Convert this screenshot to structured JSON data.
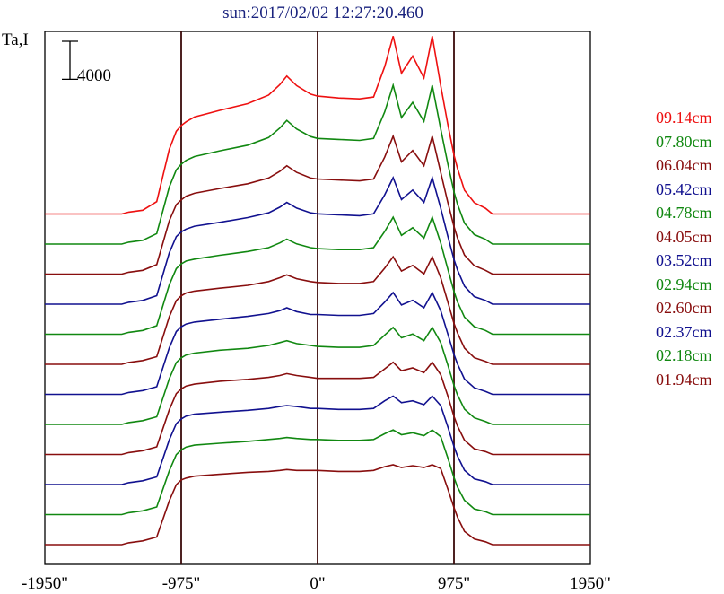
{
  "header": {
    "title": "sun:2017/02/02 12:27:20.460",
    "ylabel": "Ta,I"
  },
  "scale_bar": {
    "label": "4000"
  },
  "legend": {
    "items": [
      {
        "label": "09.14cm",
        "color": "#ee1111"
      },
      {
        "label": "07.80cm",
        "color": "#118811"
      },
      {
        "label": "06.04cm",
        "color": "#880e0e"
      },
      {
        "label": "05.42cm",
        "color": "#11118f"
      },
      {
        "label": "04.78cm",
        "color": "#118811"
      },
      {
        "label": "04.05cm",
        "color": "#880e0e"
      },
      {
        "label": "03.52cm",
        "color": "#11118f"
      },
      {
        "label": "02.94cm",
        "color": "#118811"
      },
      {
        "label": "02.60cm",
        "color": "#880e0e"
      },
      {
        "label": "02.37cm",
        "color": "#11118f"
      },
      {
        "label": "02.18cm",
        "color": "#118811"
      },
      {
        "label": "01.94cm",
        "color": "#880e0e"
      }
    ]
  },
  "chart_data": {
    "type": "line",
    "title": "sun:2017/02/02 12:27:20.460",
    "ylabel": "Ta,I",
    "xlabel": "",
    "xlim": [
      -1950,
      1950
    ],
    "x_ticks": [
      -1950,
      -975,
      0,
      975,
      1950
    ],
    "x_tick_labels": [
      "-1950\"",
      "-975\"",
      "0\"",
      "975\"",
      "1950\""
    ],
    "vertical_reference_lines": [
      -975,
      0,
      975
    ],
    "scale_bar_value": 4000,
    "profile_x": [
      -1950,
      -1400,
      -1350,
      -1250,
      -1150,
      -1060,
      -1010,
      -975,
      -940,
      -880,
      -700,
      -500,
      -350,
      -270,
      -220,
      -150,
      -50,
      0,
      150,
      300,
      400,
      480,
      540,
      600,
      680,
      760,
      820,
      880,
      930,
      975,
      1000,
      1050,
      1120,
      1200,
      1250,
      1400,
      1950
    ],
    "series": [
      {
        "name": "09.14cm",
        "color": "#ee1111",
        "ybase": 0,
        "hump_scale": 1.0,
        "y": [
          0,
          0,
          200,
          400,
          1300,
          6800,
          8700,
          9300,
          9700,
          10200,
          10900,
          11600,
          12500,
          13600,
          14500,
          13500,
          12600,
          12400,
          12200,
          12100,
          12300,
          15500,
          18700,
          14800,
          16600,
          14300,
          18700,
          13500,
          9500,
          6200,
          4800,
          2500,
          1200,
          600,
          0,
          0,
          0
        ]
      },
      {
        "name": "07.80cm",
        "color": "#118811",
        "ybase": 0,
        "hump_scale": 0.85,
        "y": [
          0,
          0,
          200,
          400,
          1100,
          6000,
          7800,
          8400,
          8800,
          9200,
          9800,
          10400,
          11200,
          12200,
          13000,
          12100,
          11300,
          11100,
          11000,
          10900,
          11100,
          13900,
          16700,
          13300,
          14900,
          12900,
          16700,
          12100,
          8500,
          5500,
          4200,
          2200,
          1000,
          500,
          0,
          0,
          0
        ]
      },
      {
        "name": "06.04cm",
        "color": "#880e0e",
        "ybase": 0,
        "hump_scale": 0.7,
        "y": [
          0,
          0,
          200,
          400,
          1000,
          5600,
          7300,
          7800,
          8200,
          8500,
          9000,
          9500,
          10100,
          10800,
          11400,
          10700,
          10100,
          10000,
          9900,
          9800,
          10000,
          12300,
          14500,
          11800,
          13000,
          11400,
          14500,
          10700,
          7600,
          5000,
          3800,
          2000,
          900,
          400,
          0,
          0,
          0
        ]
      },
      {
        "name": "05.42cm",
        "color": "#11118f",
        "ybase": 0,
        "hump_scale": 0.6,
        "y": [
          0,
          0,
          200,
          400,
          900,
          5400,
          7100,
          7600,
          7900,
          8200,
          8600,
          9100,
          9600,
          10200,
          10700,
          10100,
          9600,
          9500,
          9400,
          9300,
          9500,
          11500,
          13300,
          11000,
          12000,
          10700,
          13300,
          10100,
          7200,
          4700,
          3600,
          1900,
          800,
          400,
          0,
          0,
          0
        ]
      },
      {
        "name": "04.78cm",
        "color": "#118811",
        "ybase": 0,
        "hump_scale": 0.5,
        "y": [
          0,
          0,
          200,
          400,
          900,
          5200,
          6900,
          7400,
          7700,
          7900,
          8300,
          8700,
          9100,
          9600,
          10000,
          9500,
          9100,
          9000,
          8900,
          8900,
          9100,
          10800,
          12300,
          10400,
          11200,
          10100,
          12300,
          9600,
          6900,
          4500,
          3400,
          1800,
          800,
          400,
          0,
          0,
          0
        ]
      },
      {
        "name": "04.05cm",
        "color": "#880e0e",
        "ybase": 0,
        "hump_scale": 0.4,
        "y": [
          0,
          0,
          200,
          400,
          800,
          5000,
          6700,
          7200,
          7500,
          7700,
          8000,
          8300,
          8700,
          9100,
          9400,
          9000,
          8700,
          8600,
          8500,
          8500,
          8700,
          10100,
          11300,
          9800,
          10400,
          9500,
          11300,
          9100,
          6600,
          4300,
          3300,
          1700,
          700,
          300,
          0,
          0,
          0
        ]
      },
      {
        "name": "03.52cm",
        "color": "#11118f",
        "ybase": 0,
        "hump_scale": 0.35,
        "y": [
          0,
          0,
          200,
          400,
          800,
          4900,
          6600,
          7100,
          7400,
          7600,
          7900,
          8200,
          8500,
          8800,
          9100,
          8700,
          8400,
          8400,
          8300,
          8300,
          8500,
          9700,
          10700,
          9400,
          9900,
          9100,
          10700,
          8800,
          6400,
          4200,
          3200,
          1600,
          700,
          300,
          0,
          0,
          0
        ]
      },
      {
        "name": "02.94cm",
        "color": "#118811",
        "ybase": 0,
        "hump_scale": 0.3,
        "y": [
          0,
          0,
          200,
          400,
          800,
          4800,
          6500,
          7000,
          7300,
          7500,
          7800,
          8000,
          8300,
          8600,
          8800,
          8500,
          8300,
          8200,
          8100,
          8100,
          8300,
          9400,
          10200,
          9100,
          9500,
          8800,
          10200,
          8600,
          6300,
          4100,
          3100,
          1600,
          700,
          300,
          0,
          0,
          0
        ]
      },
      {
        "name": "02.60cm",
        "color": "#880e0e",
        "ybase": 0,
        "hump_scale": 0.25,
        "y": [
          0,
          0,
          200,
          400,
          800,
          4700,
          6400,
          6900,
          7200,
          7400,
          7700,
          7900,
          8100,
          8300,
          8500,
          8300,
          8100,
          8000,
          8000,
          8000,
          8100,
          9000,
          9700,
          8800,
          9100,
          8600,
          9700,
          8400,
          6200,
          4000,
          3000,
          1500,
          600,
          300,
          0,
          0,
          0
        ]
      },
      {
        "name": "02.37cm",
        "color": "#11118f",
        "ybase": 0,
        "hump_scale": 0.2,
        "y": [
          0,
          0,
          200,
          400,
          800,
          4700,
          6400,
          6900,
          7200,
          7400,
          7600,
          7800,
          8000,
          8200,
          8300,
          8200,
          8000,
          8000,
          7900,
          7900,
          8000,
          8800,
          9300,
          8600,
          8800,
          8400,
          9300,
          8300,
          6100,
          4000,
          3000,
          1500,
          600,
          300,
          0,
          0,
          0
        ]
      },
      {
        "name": "02.18cm",
        "color": "#118811",
        "ybase": 0,
        "hump_scale": 0.15,
        "y": [
          0,
          0,
          200,
          400,
          800,
          4600,
          6300,
          6800,
          7100,
          7300,
          7500,
          7700,
          7900,
          8000,
          8100,
          8000,
          7900,
          7900,
          7800,
          7800,
          7900,
          8500,
          8900,
          8400,
          8600,
          8300,
          8900,
          8200,
          6000,
          3900,
          2900,
          1500,
          600,
          300,
          0,
          0,
          0
        ]
      },
      {
        "name": "01.94cm",
        "color": "#880e0e",
        "ybase": 0,
        "hump_scale": 0.1,
        "y": [
          0,
          0,
          200,
          400,
          800,
          4600,
          6300,
          6800,
          7000,
          7200,
          7400,
          7600,
          7700,
          7800,
          7900,
          7800,
          7800,
          7800,
          7700,
          7700,
          7800,
          8200,
          8400,
          8100,
          8300,
          8100,
          8400,
          8000,
          5900,
          3900,
          2900,
          1400,
          600,
          300,
          0,
          0,
          0
        ]
      }
    ],
    "trace_offset_value": 2150,
    "grid": false,
    "legend_position": "right"
  }
}
